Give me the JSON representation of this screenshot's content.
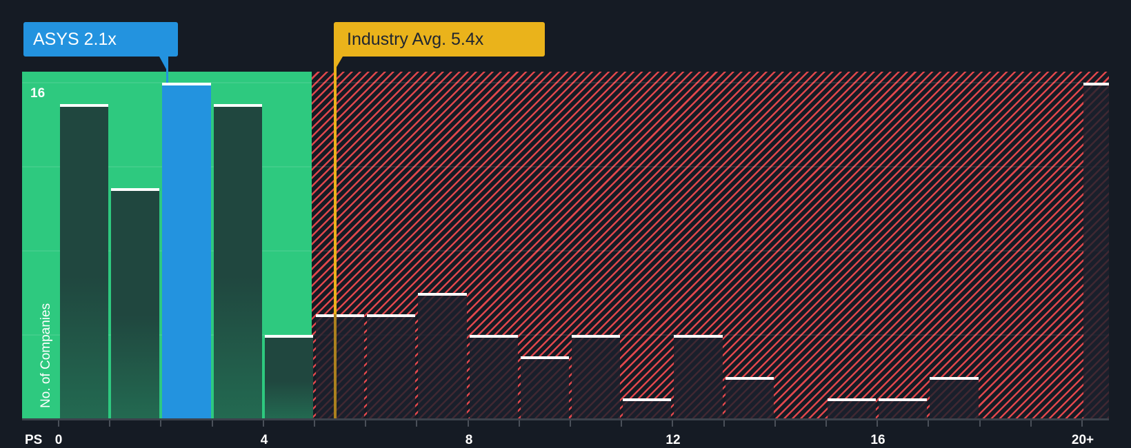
{
  "chart_data": {
    "type": "bar",
    "title": "",
    "xlabel": "PS",
    "ylabel": "No. of Companies",
    "x_tick_labels": [
      "0",
      "4",
      "8",
      "12",
      "16",
      "20+"
    ],
    "y_tick_labels": [
      "16"
    ],
    "ylim": [
      0,
      16
    ],
    "grid": true,
    "bins": [
      "0-1",
      "1-2",
      "2-3",
      "3-4",
      "4-5",
      "5-6",
      "6-7",
      "7-8",
      "8-9",
      "9-10",
      "10-11",
      "11-12",
      "12-13",
      "13-14",
      "14-15",
      "15-16",
      "16-17",
      "17-18",
      "18-19",
      "19-20",
      "20+"
    ],
    "values": [
      15,
      11,
      16,
      15,
      4,
      5,
      5,
      6,
      4,
      3,
      4,
      1,
      4,
      2,
      0,
      1,
      1,
      2,
      0,
      0,
      16
    ],
    "highlight_bin": "2-3",
    "company": {
      "ticker": "ASYS",
      "value": 2.1,
      "label": "ASYS 2.1x"
    },
    "industry_average": {
      "value": 5.4,
      "label": "Industry Avg. 5.4x"
    },
    "zones": [
      {
        "name": "below-average",
        "from": 0,
        "to": 5.2,
        "color": "#2ec97f"
      },
      {
        "name": "above-average",
        "from": 5.2,
        "to": 20.5,
        "color": "#e0474c",
        "pattern": "diagonal-hatch"
      }
    ],
    "colors": {
      "background": "#151b24",
      "highlight_bar": "#2393df",
      "company_callout": "#2393df",
      "industry_callout": "#eab31b",
      "bar_cap": "#ffffff"
    }
  },
  "callouts": {
    "company": "ASYS 2.1x",
    "industry": "Industry Avg. 5.4x"
  },
  "axis": {
    "x_title": "PS",
    "y_title": "No. of Companies",
    "y_top_label": "16",
    "x_labels": [
      "0",
      "4",
      "8",
      "12",
      "16",
      "20+"
    ]
  }
}
